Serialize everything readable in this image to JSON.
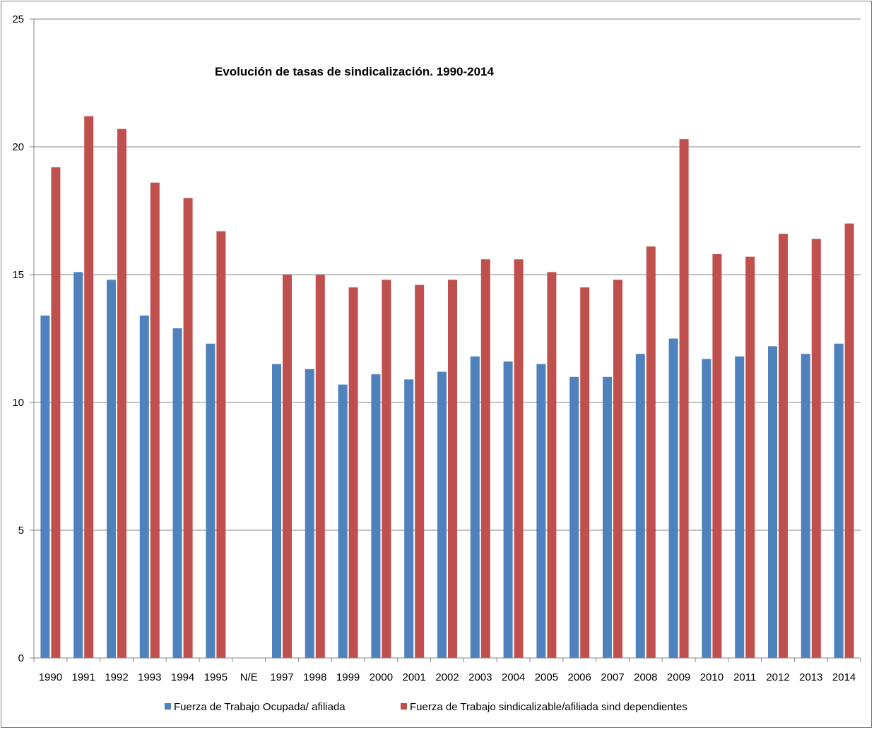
{
  "chart_data": {
    "type": "bar",
    "title": "Evolución de tasas de sindicalización. 1990-2014",
    "xlabel": "",
    "ylabel": "",
    "ylim": [
      0,
      25
    ],
    "yticks": [
      0,
      5,
      10,
      15,
      20,
      25
    ],
    "grid": "horizontal",
    "legend_position": "bottom",
    "categories": [
      "1990",
      "1991",
      "1992",
      "1993",
      "1994",
      "1995",
      "N/E",
      "1997",
      "1998",
      "1999",
      "2000",
      "2001",
      "2002",
      "2003",
      "2004",
      "2005",
      "2006",
      "2007",
      "2008",
      "2009",
      "2010",
      "2011",
      "2012",
      "2013",
      "2014"
    ],
    "series": [
      {
        "name": "Fuerza de Trabajo Ocupada/ afiliada",
        "color": "#4f81bd",
        "values": [
          13.4,
          15.1,
          14.8,
          13.4,
          12.9,
          12.3,
          null,
          11.5,
          11.3,
          10.7,
          11.1,
          10.9,
          11.2,
          11.8,
          11.6,
          11.5,
          11.0,
          11.0,
          11.9,
          12.5,
          11.7,
          11.8,
          12.2,
          11.9,
          12.3
        ]
      },
      {
        "name": "Fuerza de Trabajo sindicalizable/afiliada sind dependientes",
        "color": "#c0504d",
        "values": [
          19.2,
          21.2,
          20.7,
          18.6,
          18.0,
          16.7,
          null,
          15.0,
          15.0,
          14.5,
          14.8,
          14.6,
          14.8,
          15.6,
          15.6,
          15.1,
          14.5,
          14.8,
          16.1,
          20.3,
          15.8,
          15.7,
          16.6,
          16.4,
          17.0
        ]
      }
    ]
  }
}
